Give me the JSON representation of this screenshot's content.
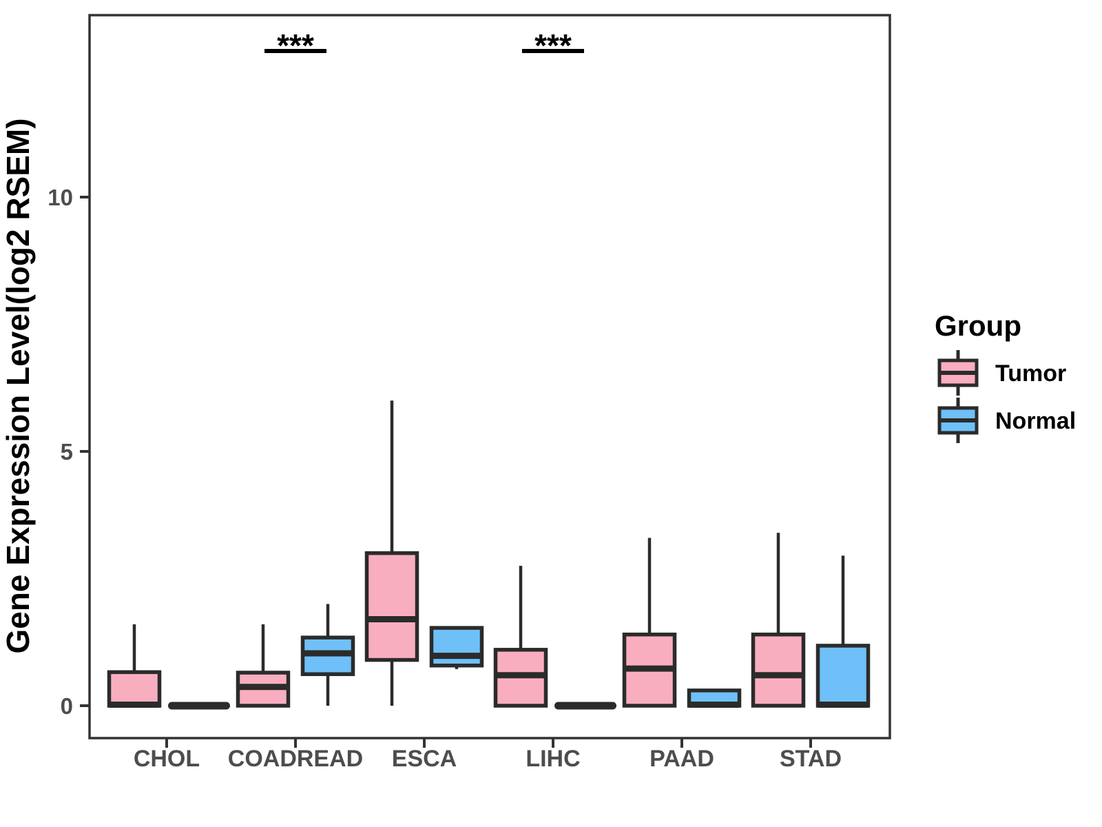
{
  "colors": {
    "tumor_fill": "#F9AEBF",
    "normal_fill": "#6FC0F8",
    "box_stroke": "#2b2b2b",
    "panel_border": "#333333",
    "axis_text": "#4d4d4d",
    "annotation": "#000000"
  },
  "chart_data": {
    "type": "boxplot",
    "title": "",
    "xlabel": "",
    "ylabel": "Gene Expression Level(log2 RSEM)",
    "categories": [
      "CHOL",
      "COADREAD",
      "ESCA",
      "LIHC",
      "PAAD",
      "STAD"
    ],
    "y_ticks": [
      0,
      5,
      10
    ],
    "ylim": [
      -0.64,
      13.6
    ],
    "grid": false,
    "legend": {
      "title": "Group",
      "position": "right",
      "entries": [
        {
          "label": "Tumor",
          "color": "#F9AEBF"
        },
        {
          "label": "Normal",
          "color": "#6FC0F8"
        }
      ]
    },
    "series": [
      {
        "name": "Tumor",
        "color": "#F9AEBF",
        "boxes": [
          {
            "category": "CHOL",
            "min": 0,
            "q1": 0,
            "median": 0.02,
            "q3": 0.66,
            "max": 1.6
          },
          {
            "category": "COADREAD",
            "min": 0,
            "q1": 0,
            "median": 0.37,
            "q3": 0.65,
            "max": 1.6
          },
          {
            "category": "ESCA",
            "min": 0,
            "q1": 0.9,
            "median": 1.7,
            "q3": 3.0,
            "max": 6.0
          },
          {
            "category": "LIHC",
            "min": 0,
            "q1": 0,
            "median": 0.6,
            "q3": 1.1,
            "max": 2.75
          },
          {
            "category": "PAAD",
            "min": 0,
            "q1": 0,
            "median": 0.73,
            "q3": 1.4,
            "max": 3.3
          },
          {
            "category": "STAD",
            "min": 0,
            "q1": 0,
            "median": 0.6,
            "q3": 1.4,
            "max": 3.4
          }
        ]
      },
      {
        "name": "Normal",
        "color": "#6FC0F8",
        "boxes": [
          {
            "category": "CHOL",
            "min": 0,
            "q1": 0,
            "median": 0,
            "q3": 0,
            "max": 0
          },
          {
            "category": "COADREAD",
            "min": 0,
            "q1": 0.62,
            "median": 1.03,
            "q3": 1.34,
            "max": 2.0
          },
          {
            "category": "ESCA",
            "min": 0.72,
            "q1": 0.79,
            "median": 0.98,
            "q3": 1.53,
            "max": 1.56
          },
          {
            "category": "LIHC",
            "min": 0,
            "q1": 0,
            "median": 0,
            "q3": 0,
            "max": 0
          },
          {
            "category": "PAAD",
            "min": 0,
            "q1": 0,
            "median": 0.02,
            "q3": 0.3,
            "max": 0.3
          },
          {
            "category": "STAD",
            "min": 0,
            "q1": 0,
            "median": 0.02,
            "q3": 1.18,
            "max": 2.95
          }
        ]
      }
    ],
    "significance": [
      {
        "category": "COADREAD",
        "label": "***"
      },
      {
        "category": "LIHC",
        "label": "***"
      }
    ]
  }
}
